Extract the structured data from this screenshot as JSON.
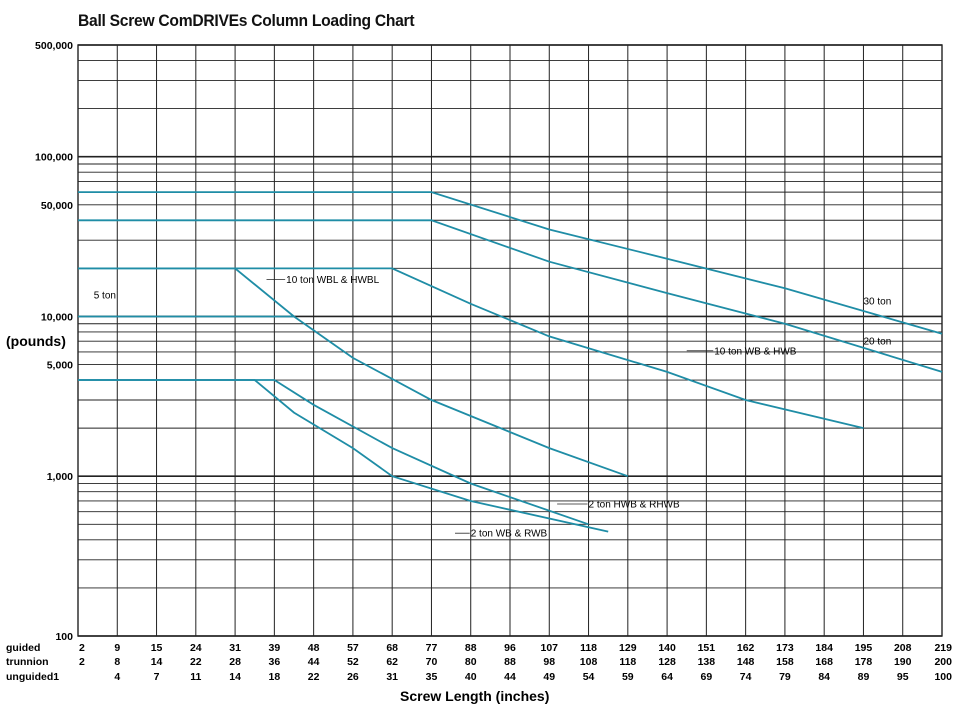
{
  "chart_data": {
    "type": "line",
    "title": "Ball Screw ComDRIVEs   Column Loading Chart",
    "ylabel": "(pounds)",
    "xlabel": "Screw Length (inches)",
    "y_scale": "log",
    "ylim": [
      100,
      500000
    ],
    "y_ticks": [
      {
        "value": 500000,
        "label": "500,000"
      },
      {
        "value": 100000,
        "label": "100,000"
      },
      {
        "value": 50000,
        "label": "50,000"
      },
      {
        "value": 10000,
        "label": "10,000"
      },
      {
        "value": 5000,
        "label": "5,000"
      },
      {
        "value": 1000,
        "label": "1,000"
      },
      {
        "value": 100,
        "label": "100"
      }
    ],
    "x_axis_rows": [
      {
        "name": "guided",
        "values": [
          "2",
          "9",
          "15",
          "24",
          "31",
          "39",
          "48",
          "57",
          "68",
          "77",
          "88",
          "96",
          "107",
          "118",
          "129",
          "140",
          "151",
          "162",
          "173",
          "184",
          "195",
          "208",
          "219"
        ]
      },
      {
        "name": "trunnion",
        "values": [
          "2",
          "8",
          "14",
          "22",
          "28",
          "36",
          "44",
          "52",
          "62",
          "70",
          "80",
          "88",
          "98",
          "108",
          "118",
          "128",
          "138",
          "148",
          "158",
          "168",
          "178",
          "190",
          "200"
        ]
      },
      {
        "name": "unguided1",
        "values": [
          "",
          "4",
          "7",
          "11",
          "14",
          "18",
          "22",
          "26",
          "31",
          "35",
          "40",
          "44",
          "49",
          "54",
          "59",
          "64",
          "69",
          "74",
          "79",
          "84",
          "89",
          "95",
          "100"
        ]
      }
    ],
    "x_index_note": "x values are positions on the guided scale (column index 0-22)",
    "series": [
      {
        "name": "30 ton",
        "points": [
          [
            0,
            60000
          ],
          [
            9,
            60000
          ],
          [
            12,
            35000
          ],
          [
            15,
            23000
          ],
          [
            18,
            15000
          ],
          [
            22,
            7800
          ]
        ]
      },
      {
        "name": "20 ton",
        "points": [
          [
            0,
            40000
          ],
          [
            9,
            40000
          ],
          [
            12,
            22000
          ],
          [
            15,
            14000
          ],
          [
            18,
            9000
          ],
          [
            22,
            4500
          ]
        ]
      },
      {
        "name": "10 ton WB & HWB",
        "points": [
          [
            0,
            20000
          ],
          [
            8,
            20000
          ],
          [
            10,
            12000
          ],
          [
            12,
            7500
          ],
          [
            15,
            4500
          ],
          [
            17,
            3000
          ],
          [
            20,
            2000
          ]
        ]
      },
      {
        "name": "10 ton WBL & HWBL",
        "points": [
          [
            0,
            20000
          ],
          [
            4,
            20000
          ],
          [
            5.5,
            10000
          ],
          [
            7,
            5500
          ],
          [
            9,
            3000
          ],
          [
            12,
            1500
          ],
          [
            14,
            1000
          ]
        ]
      },
      {
        "name": "5 ton",
        "points": [
          [
            0,
            10000
          ],
          [
            5.5,
            10000
          ]
        ]
      },
      {
        "name": "2 ton HWB & RHWB",
        "points": [
          [
            0,
            4000
          ],
          [
            5,
            4000
          ],
          [
            6,
            2800
          ],
          [
            8,
            1500
          ],
          [
            10,
            900
          ],
          [
            13,
            500
          ]
        ]
      },
      {
        "name": "2 ton WB & RWB",
        "points": [
          [
            0,
            4000
          ],
          [
            4.5,
            4000
          ],
          [
            5.5,
            2500
          ],
          [
            7,
            1500
          ],
          [
            8,
            1000
          ],
          [
            10,
            700
          ],
          [
            13.5,
            450
          ]
        ]
      }
    ],
    "annotations": [
      {
        "text": "30 ton"
      },
      {
        "text": "20 ton"
      },
      {
        "text": "10 ton WB & HWB"
      },
      {
        "text": "10 ton WBL & HWBL"
      },
      {
        "text": "5 ton"
      },
      {
        "text": "2 ton HWB & RHWB"
      },
      {
        "text": "2 ton WB & RWB"
      }
    ],
    "grid": true,
    "line_color": "#1f8da6"
  }
}
